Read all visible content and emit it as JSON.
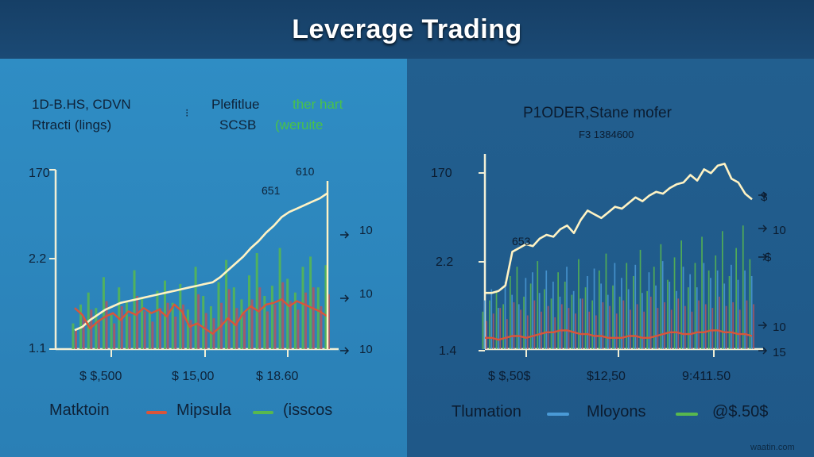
{
  "title": "Leverage Trading",
  "colors": {
    "price_line": "#fff3c4",
    "red_line": "#d9553a",
    "green_bar": "#58b84e",
    "red_bar": "#b35560",
    "blue_bar": "#4a9ad6",
    "axis": "#f1efd6"
  },
  "chart_data": [
    {
      "type": "line",
      "title_lines": [
        "1D-B.HS, CDVN",
        "Rtracti (lings)"
      ],
      "subtitle_lines": [
        "Plefitlue",
        "SCSB"
      ],
      "subtitle_green": [
        "ther hart",
        "(weruite"
      ],
      "y_ticks": [
        "170",
        "2.2",
        "1.1"
      ],
      "x_ticks": [
        "$ $,500",
        "$ 15,00",
        "$ 18.60"
      ],
      "right_ticks": [
        "10",
        "10",
        "10"
      ],
      "annotations": [
        "651",
        "610"
      ],
      "legend": [
        "Matktoin",
        "Mipsula",
        "(isscos"
      ],
      "ylim": [
        0,
        10
      ],
      "x": [
        0,
        1,
        2,
        3,
        4,
        5,
        6,
        7,
        8,
        9,
        10,
        11,
        12,
        13,
        14,
        15,
        16,
        17,
        18,
        19,
        20,
        21,
        22,
        23,
        24,
        25,
        26,
        27,
        28,
        29,
        30,
        31,
        32,
        33
      ],
      "series": [
        {
          "values": [
            1.1,
            1.3,
            1.7,
            2.0,
            2.3,
            2.5,
            2.7,
            2.8,
            2.9,
            3.0,
            3.1,
            3.2,
            3.3,
            3.4,
            3.5,
            3.6,
            3.7,
            3.8,
            3.9,
            4.2,
            4.6,
            5.0,
            5.4,
            5.9,
            6.3,
            6.8,
            7.2,
            7.7,
            8.0,
            8.2,
            8.4,
            8.6,
            8.8,
            9.1
          ]
        },
        {
          "values": [
            2.4,
            2.0,
            1.2,
            1.6,
            1.9,
            2.1,
            1.7,
            2.2,
            2.0,
            2.4,
            2.1,
            2.3,
            1.9,
            2.6,
            2.2,
            1.3,
            1.5,
            1.2,
            0.9,
            1.3,
            1.8,
            1.4,
            2.1,
            2.5,
            2.2,
            2.6,
            2.7,
            2.9,
            2.5,
            2.8,
            2.6,
            2.4,
            2.2,
            1.9
          ]
        }
      ],
      "bars": [
        {
          "values": [
            1.5,
            2.6,
            3.3,
            2.4,
            4.2,
            2.0,
            3.6,
            2.8,
            4.6,
            3.0,
            2.2,
            3.4,
            4.0,
            2.7,
            3.8,
            2.3,
            4.8,
            3.1,
            2.5,
            3.9,
            5.2,
            3.6,
            2.9,
            4.3,
            5.6,
            3.1,
            3.7,
            5.9,
            4.1,
            3.3,
            4.8,
            5.4,
            3.6,
            4.9
          ]
        },
        {
          "values": [
            1.1,
            1.9,
            2.3,
            1.7,
            2.8,
            1.5,
            2.5,
            1.9,
            3.1,
            2.2,
            1.6,
            2.4,
            2.7,
            1.9,
            2.6,
            1.7,
            3.2,
            2.1,
            1.8,
            2.7,
            3.5,
            2.4,
            2.1,
            2.9,
            3.6,
            2.2,
            2.6,
            3.9,
            2.8,
            2.3,
            3.3,
            3.6,
            2.5,
            3.2
          ]
        }
      ]
    },
    {
      "type": "line",
      "title_lines": [
        "P1ODER,Stane mofer"
      ],
      "subtitle_lines": [
        "F3 1384600"
      ],
      "y_ticks": [
        "170",
        "2.2",
        "1.4"
      ],
      "x_ticks": [
        "$ $,50$",
        "$12,50",
        "9:411.50"
      ],
      "right_ticks": [
        "$",
        "10",
        "$",
        "10",
        "15"
      ],
      "annotations": [
        "653"
      ],
      "legend": [
        "Tlumation",
        "Mloyons",
        "@$.50$"
      ],
      "ylim": [
        0,
        10
      ],
      "x": [
        0,
        1,
        2,
        3,
        4,
        5,
        6,
        7,
        8,
        9,
        10,
        11,
        12,
        13,
        14,
        15,
        16,
        17,
        18,
        19,
        20,
        21,
        22,
        23,
        24,
        25,
        26,
        27,
        28,
        29,
        30,
        31,
        32,
        33,
        34,
        35,
        36,
        37,
        38,
        39
      ],
      "series": [
        {
          "values": [
            3.0,
            3.0,
            3.1,
            3.4,
            5.2,
            5.4,
            5.6,
            5.5,
            5.9,
            6.1,
            6.0,
            6.4,
            6.6,
            6.2,
            6.9,
            7.4,
            7.2,
            7.0,
            7.3,
            7.6,
            7.5,
            7.8,
            8.1,
            7.9,
            8.2,
            8.4,
            8.3,
            8.6,
            8.8,
            8.9,
            9.3,
            9.0,
            9.6,
            9.4,
            9.8,
            9.9,
            9.1,
            8.9,
            8.3,
            8.0
          ]
        },
        {
          "values": [
            0.6,
            0.6,
            0.5,
            0.6,
            0.7,
            0.7,
            0.6,
            0.7,
            0.8,
            0.9,
            0.9,
            1.0,
            1.0,
            0.9,
            0.8,
            0.8,
            0.7,
            0.7,
            0.6,
            0.6,
            0.6,
            0.7,
            0.7,
            0.6,
            0.6,
            0.7,
            0.8,
            0.9,
            0.9,
            0.8,
            0.8,
            0.9,
            0.9,
            1.0,
            1.0,
            0.9,
            0.9,
            0.8,
            0.8,
            0.7
          ]
        }
      ],
      "bars": [
        {
          "values": [
            2.0,
            2.6,
            3.1,
            2.4,
            3.9,
            4.4,
            2.8,
            3.5,
            4.7,
            3.2,
            2.7,
            4.1,
            3.6,
            2.9,
            4.8,
            3.3,
            2.6,
            4.2,
            5.1,
            3.4,
            2.8,
            4.6,
            3.9,
            5.3,
            3.1,
            4.4,
            5.6,
            3.7,
            4.9,
            5.8,
            3.3,
            4.6,
            6.0,
            4.2,
            5.0,
            6.3,
            3.9,
            5.4,
            6.6,
            4.8
          ]
        },
        {
          "values": [
            2.6,
            3.2,
            2.2,
            3.6,
            2.9,
            2.4,
            3.8,
            4.1,
            3.0,
            4.2,
            3.6,
            2.8,
            4.4,
            3.1,
            2.7,
            3.9,
            4.3,
            3.5,
            2.9,
            4.6,
            3.8,
            3.2,
            4.5,
            3.0,
            4.1,
            3.4,
            4.7,
            3.6,
            3.1,
            4.4,
            4.0,
            3.3,
            4.6,
            3.8,
            4.2,
            3.5,
            4.5,
            3.7,
            4.2,
            3.9
          ]
        },
        {
          "values": [
            1.5,
            1.9,
            2.2,
            1.6,
            2.5,
            2.1,
            1.8,
            2.6,
            2.0,
            2.3,
            1.7,
            2.4,
            2.2,
            1.9,
            2.7,
            2.0,
            1.8,
            2.5,
            2.3,
            1.9,
            2.6,
            2.1,
            2.4,
            2.0,
            2.8,
            2.2,
            2.5,
            2.1,
            2.7,
            2.3,
            2.0,
            2.6,
            2.4,
            2.2,
            2.8,
            2.3,
            2.5,
            2.1,
            2.6,
            2.4
          ]
        }
      ]
    }
  ],
  "watermark": "waatin.com"
}
